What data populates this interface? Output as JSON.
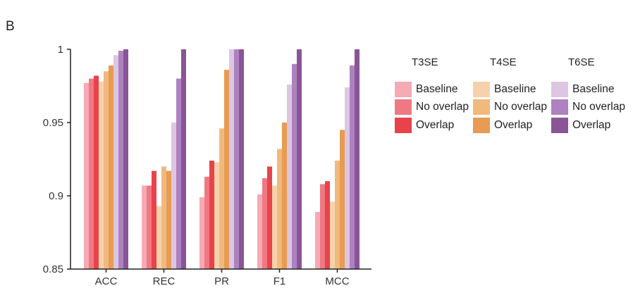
{
  "panel_label": "B",
  "chart_data": {
    "type": "bar",
    "categories": [
      "ACC",
      "REC",
      "PR",
      "F1",
      "MCC"
    ],
    "ylim": [
      0.85,
      1.0
    ],
    "yticks": [
      0.85,
      0.9,
      0.95,
      1
    ],
    "ytick_labels": [
      "0.85",
      "0.9",
      "0.95",
      "1"
    ],
    "groups": [
      {
        "name": "T3SE",
        "series": [
          {
            "name": "Baseline",
            "color": "#f5aab4",
            "values": [
              0.977,
              0.907,
              0.899,
              0.901,
              0.889
            ]
          },
          {
            "name": "No overlap",
            "color": "#f07882",
            "values": [
              0.98,
              0.907,
              0.913,
              0.912,
              0.908
            ]
          },
          {
            "name": "Overlap",
            "color": "#e8434b",
            "values": [
              0.982,
              0.917,
              0.924,
              0.92,
              0.91
            ]
          }
        ]
      },
      {
        "name": "T4SE",
        "series": [
          {
            "name": "Baseline",
            "color": "#f6d2aa",
            "values": [
              0.978,
              0.893,
              0.923,
              0.907,
              0.896
            ]
          },
          {
            "name": "No overlap",
            "color": "#f0b97e",
            "values": [
              0.985,
              0.92,
              0.946,
              0.932,
              0.924
            ]
          },
          {
            "name": "Overlap",
            "color": "#e89b52",
            "values": [
              0.989,
              0.917,
              0.986,
              0.95,
              0.945
            ]
          }
        ]
      },
      {
        "name": "T6SE",
        "series": [
          {
            "name": "Baseline",
            "color": "#dcc6e2",
            "values": [
              0.996,
              0.95,
              1.0,
              0.976,
              0.974
            ]
          },
          {
            "name": "No overlap",
            "color": "#ad82bf",
            "values": [
              0.999,
              0.98,
              1.0,
              0.99,
              0.989
            ]
          },
          {
            "name": "Overlap",
            "color": "#8a5596",
            "values": [
              1.0,
              1.0,
              1.0,
              1.0,
              1.0
            ]
          }
        ]
      }
    ],
    "grid": false,
    "legend_position": "right"
  }
}
